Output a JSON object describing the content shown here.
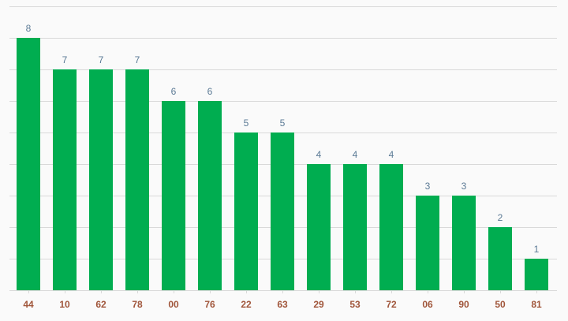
{
  "chart_data": {
    "type": "bar",
    "categories": [
      "44",
      "10",
      "62",
      "78",
      "00",
      "76",
      "22",
      "63",
      "29",
      "53",
      "72",
      "06",
      "90",
      "50",
      "81"
    ],
    "values": [
      8,
      7,
      7,
      7,
      6,
      6,
      5,
      5,
      4,
      4,
      4,
      3,
      3,
      2,
      1
    ],
    "title": "",
    "xlabel": "",
    "ylabel": "",
    "ylim": [
      0,
      9
    ],
    "grid": true,
    "legend": "none",
    "colors": {
      "bar": "#00ad50",
      "value_label": "#5b7a95",
      "category_label": "#a0553a",
      "grid": "#d9d9d9",
      "background": "#fafafa"
    }
  }
}
